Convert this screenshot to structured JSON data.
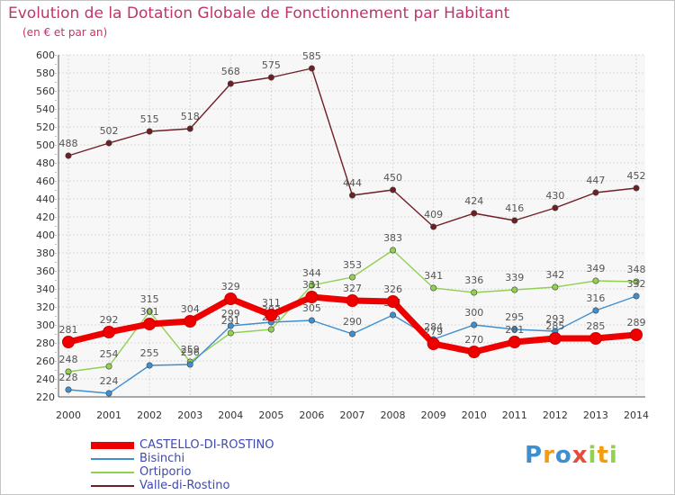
{
  "chart_data": {
    "type": "line",
    "title": "Evolution de la Dotation Globale de Fonctionnement par Habitant",
    "subtitle": "(en € et par an)",
    "xlabel": "",
    "ylabel": "",
    "ylim": [
      220,
      600
    ],
    "ytick_step": 20,
    "grid": true,
    "categories": [
      "2000",
      "2001",
      "2002",
      "2003",
      "2004",
      "2005",
      "2006",
      "2007",
      "2008",
      "2009",
      "2010",
      "2011",
      "2012",
      "2013",
      "2014"
    ],
    "series": [
      {
        "name": "Valle-di-Rostino",
        "color": "#6e1f24",
        "values": [
          488,
          502,
          515,
          518,
          568,
          575,
          585,
          444,
          450,
          409,
          424,
          416,
          430,
          447,
          452
        ]
      },
      {
        "name": "Ortiporio",
        "color": "#92d050",
        "values": [
          248,
          254,
          315,
          259,
          291,
          295,
          344,
          353,
          383,
          341,
          336,
          339,
          342,
          349,
          348
        ]
      },
      {
        "name": "Bisinchi",
        "color": "#3e8fd0",
        "values": [
          228,
          224,
          255,
          256,
          299,
          303,
          305,
          290,
          311,
          284,
          300,
          295,
          293,
          316,
          332
        ]
      },
      {
        "name": "CASTELLO-DI-ROSTINO",
        "color": "#ee0000",
        "values": [
          281,
          292,
          301,
          304,
          329,
          311,
          331,
          327,
          326,
          279,
          270,
          281,
          285,
          285,
          289
        ]
      }
    ],
    "legend": [
      "CASTELLO-DI-ROSTINO",
      "Bisinchi",
      "Ortiporio",
      "Valle-di-Rostino"
    ],
    "legend_position": "bottom-left"
  },
  "logo": {
    "text": "Proxiti",
    "colors": [
      "#3e8fd0",
      "#f39c12",
      "#3e8fd0",
      "#e74c3c",
      "#92d050",
      "#f39c12",
      "#92d050"
    ]
  }
}
